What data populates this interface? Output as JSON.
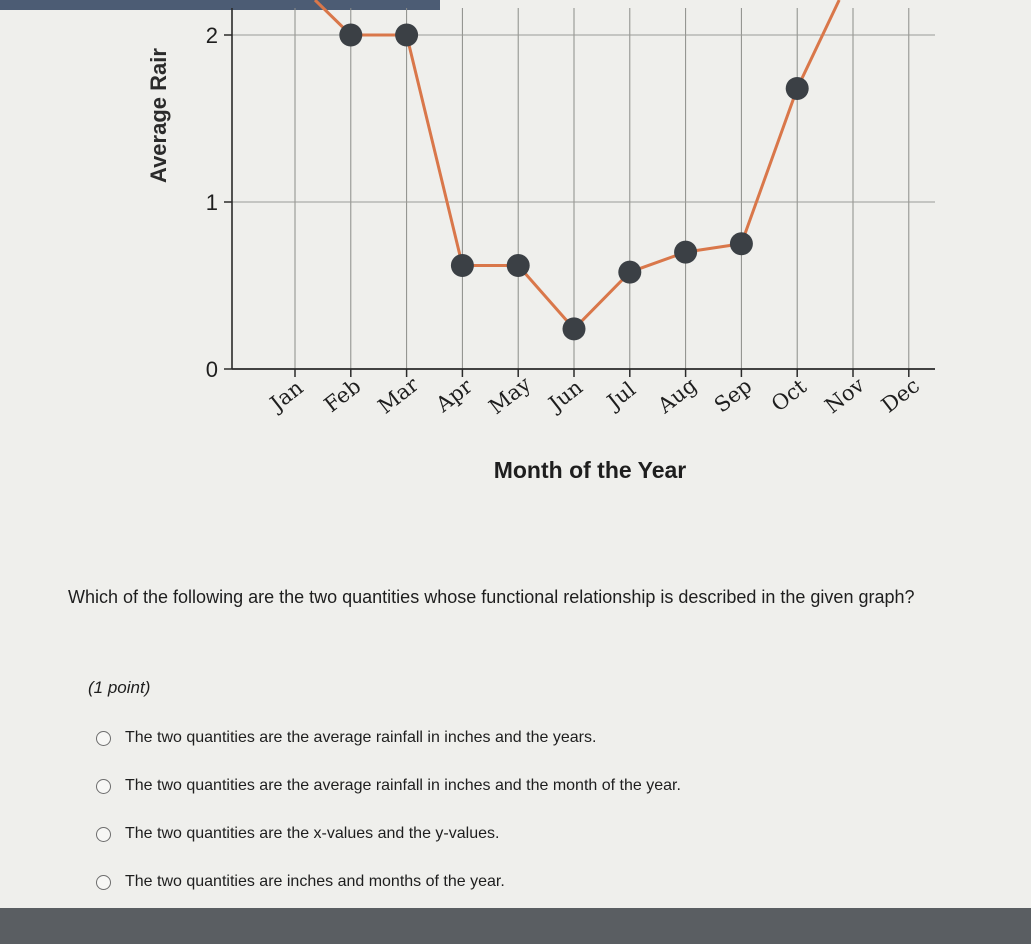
{
  "chart_data": {
    "type": "line",
    "title": "",
    "xlabel": "Month of the Year",
    "ylabel": "Average Rair",
    "categories": [
      "Jan",
      "Feb",
      "Mar",
      "Apr",
      "May",
      "Jun",
      "Jul",
      "Aug",
      "Sep",
      "Oct",
      "Nov",
      "Dec"
    ],
    "values": [
      null,
      2.0,
      2.0,
      0.62,
      0.62,
      0.24,
      0.58,
      0.7,
      0.75,
      1.68,
      null,
      null
    ],
    "y_ticks": [
      "0",
      "1",
      "2"
    ],
    "ylim": [
      0,
      2.05
    ],
    "grid": true,
    "line_color": "#d9774a",
    "marker_color": "#3b4045"
  },
  "question": {
    "text": "Which of the following are the two quantities whose functional relationship is described in the given graph?",
    "points": "(1 point)",
    "options": [
      "The two quantities are the average rainfall in inches and the years.",
      "The two quantities are the average rainfall in inches and the month of the year.",
      "The two quantities are the x-values and the y-values.",
      "The two quantities are inches and months of the year."
    ]
  }
}
